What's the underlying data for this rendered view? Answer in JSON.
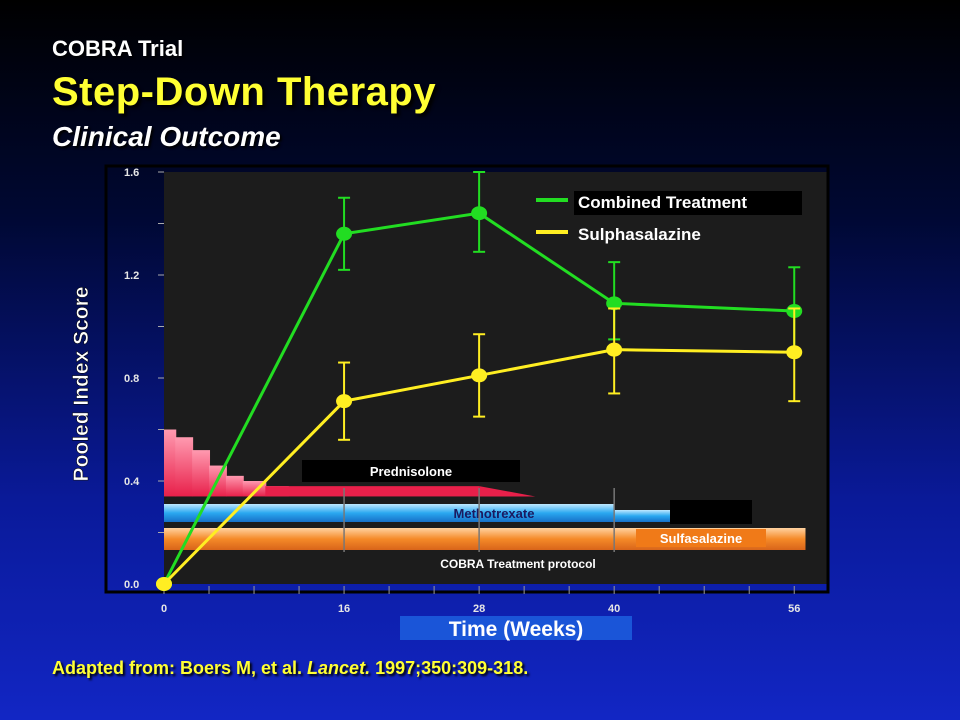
{
  "slide": {
    "kicker": "COBRA Trial",
    "title": "Step-Down Therapy",
    "subtitle": "Clinical Outcome",
    "source_prefix": "Adapted from: Boers M, et al. ",
    "source_journal": "Lancet.",
    "source_suffix": " 1997;350:309-318."
  },
  "colors": {
    "combined": "#22dd22",
    "sulpha": "#ffee22",
    "prednisolone": "#e8204a",
    "methotrexate": "#2aa8f0",
    "sulfasalazine_bar": "#f58a28",
    "plot_bg": "#1c1c1c",
    "title_yellow": "#ffff33"
  },
  "chart_data": {
    "type": "line",
    "xlabel": "Time (Weeks)",
    "ylabel": "Pooled Index Score",
    "x": [
      0,
      16,
      28,
      40,
      56
    ],
    "x_ticks": [
      "0",
      "16",
      "28",
      "40",
      "56"
    ],
    "y_ticks": [
      "0.0",
      "0.4",
      "0.8",
      "1.2",
      "1.6"
    ],
    "xlim": [
      0,
      59
    ],
    "ylim": [
      0,
      1.6
    ],
    "legend_position": "top-right",
    "series": [
      {
        "name": "Combined Treatment",
        "values": [
          0,
          1.36,
          1.44,
          1.09,
          1.06
        ],
        "err_low": [
          0,
          1.22,
          1.29,
          0.95,
          0.9
        ],
        "err_high": [
          0,
          1.5,
          1.6,
          1.25,
          1.23
        ]
      },
      {
        "name": "Sulphasalazine",
        "values": [
          0,
          0.71,
          0.81,
          0.91,
          0.9
        ],
        "err_low": [
          0,
          0.56,
          0.65,
          0.74,
          0.71
        ],
        "err_high": [
          0,
          0.86,
          0.97,
          1.07,
          1.07
        ]
      }
    ],
    "protocol": {
      "label": "COBRA Treatment protocol",
      "bars": [
        {
          "name": "Prednisolone",
          "start_week": 0,
          "end_week": 33
        },
        {
          "name": "Methotrexate",
          "start_week": 0,
          "end_week": 45
        },
        {
          "name": "Sulfasalazine",
          "start_week": 0,
          "end_week": 57
        }
      ]
    }
  }
}
